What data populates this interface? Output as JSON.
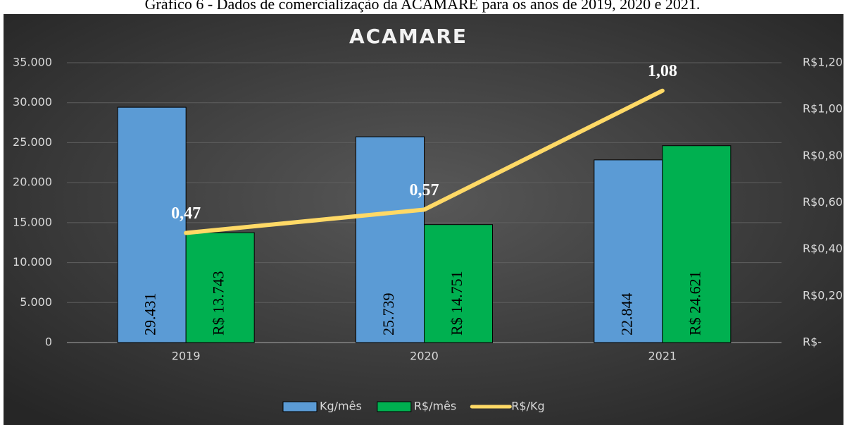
{
  "caption": "Gráfico 6 - Dados de comercialização da ACAMARE para os anos de 2019, 2020 e 2021.",
  "chart_data": {
    "type": "bar",
    "title": "ACAMARE",
    "categories": [
      "2019",
      "2020",
      "2021"
    ],
    "series": [
      {
        "name": "Kg/mês",
        "color": "#5b9bd5",
        "values": [
          29431,
          25739,
          22844
        ],
        "value_labels": [
          "29.431",
          "25.739",
          "22.844"
        ]
      },
      {
        "name": "R$/mês",
        "color": "#00b050",
        "values": [
          13743,
          14751,
          24621
        ],
        "value_labels": [
          "R$ 13.743",
          "R$ 14.751",
          "R$ 24.621"
        ]
      },
      {
        "name": "R$/Kg",
        "type": "line",
        "axis": "y2",
        "color": "#ffd966",
        "values": [
          0.47,
          0.57,
          1.08
        ],
        "value_labels": [
          "0,47",
          "0,57",
          "1,08"
        ]
      }
    ],
    "ylim": [
      0,
      35000
    ],
    "yticks": [
      0,
      {
        "value": 5000,
        "label": "5.000"
      },
      {
        "value": 10000,
        "label": "10.000"
      },
      {
        "value": 15000,
        "label": "15.000"
      },
      {
        "value": 20000,
        "label": "20.000"
      },
      {
        "value": 25000,
        "label": "25.000"
      },
      {
        "value": 30000,
        "label": "30.000"
      },
      {
        "value": 35000,
        "label": "35.000"
      }
    ],
    "y2lim": [
      0,
      1.2
    ],
    "y2ticks": [
      {
        "value": 0,
        "label": "R$-"
      },
      {
        "value": 0.2,
        "label": "R$0,20"
      },
      {
        "value": 0.4,
        "label": "R$0,40"
      },
      {
        "value": 0.6,
        "label": "R$0,60"
      },
      {
        "value": 0.8,
        "label": "R$0,80"
      },
      {
        "value": 1.0,
        "label": "R$1,00"
      },
      {
        "value": 1.2,
        "label": "R$1,20"
      }
    ],
    "grid": true,
    "legend": "bottom"
  }
}
